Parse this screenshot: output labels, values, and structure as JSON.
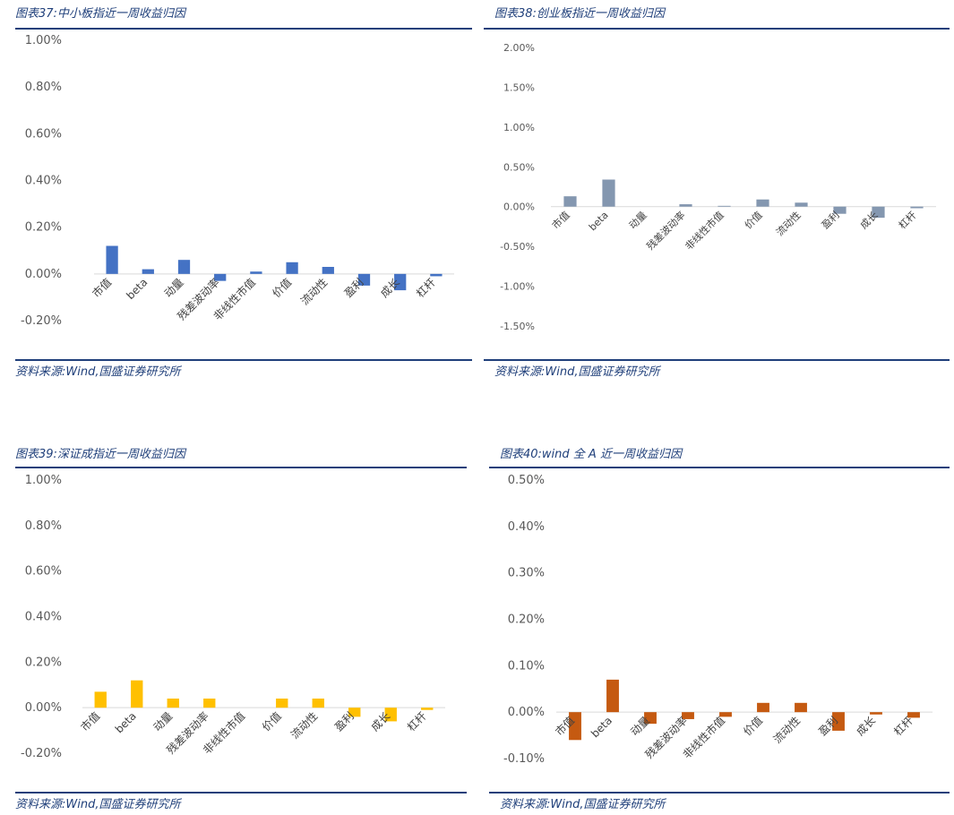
{
  "charts": [
    {
      "title": "图表37:中小板指近一周收益归因",
      "source": "资料来源:Wind,国盛证券研究所",
      "chart_data": {
        "type": "bar",
        "categories": [
          "市值",
          "beta",
          "动量",
          "残差波动率",
          "非线性市值",
          "价值",
          "流动性",
          "盈利",
          "成长",
          "杠杆"
        ],
        "values": [
          0.0012,
          0.0002,
          0.0006,
          -0.0003,
          0.0001,
          0.0005,
          0.0003,
          -0.0005,
          -0.0007,
          -0.0001
        ],
        "ylim": [
          -0.002,
          0.01
        ],
        "yticks": [
          1.0,
          0.8,
          0.6,
          0.4,
          0.2,
          0.0,
          -0.2
        ],
        "ytick_labels": [
          "1.00%",
          "0.80%",
          "0.60%",
          "0.40%",
          "0.20%",
          "0.00%",
          "-0.20%"
        ],
        "color": "#4472c4"
      }
    },
    {
      "title": "图表38:创业板指近一周收益归因",
      "source": "资料来源:Wind,国盛证券研究所",
      "chart_data": {
        "type": "bar",
        "categories": [
          "市值",
          "beta",
          "动量",
          "残差波动率",
          "非线性市值",
          "价值",
          "流动性",
          "盈利",
          "成长",
          "杠杆"
        ],
        "values": [
          0.0013,
          0.0034,
          0.0,
          0.0003,
          0.0001,
          0.0009,
          0.0005,
          -0.0009,
          -0.0014,
          -0.0002
        ],
        "ylim": [
          -0.015,
          0.02
        ],
        "yticks": [
          2.0,
          1.5,
          1.0,
          0.5,
          0.0,
          -0.5,
          -1.0,
          -1.5
        ],
        "ytick_labels": [
          "2.00%",
          "1.50%",
          "1.00%",
          "0.50%",
          "0.00%",
          "-0.50%",
          "-1.00%",
          "-1.50%"
        ],
        "color": "#8497b0"
      }
    },
    {
      "title": "图表39:深证成指近一周收益归因",
      "source": "资料来源:Wind,国盛证券研究所",
      "chart_data": {
        "type": "bar",
        "categories": [
          "市值",
          "beta",
          "动量",
          "残差波动率",
          "非线性市值",
          "价值",
          "流动性",
          "盈利",
          "成长",
          "杠杆"
        ],
        "values": [
          0.0007,
          0.0012,
          0.0004,
          0.0004,
          0.0,
          0.0004,
          0.0004,
          -0.0004,
          -0.0006,
          -0.0001
        ],
        "ylim": [
          -0.002,
          0.01
        ],
        "yticks": [
          1.0,
          0.8,
          0.6,
          0.4,
          0.2,
          0.0,
          -0.2
        ],
        "ytick_labels": [
          "1.00%",
          "0.80%",
          "0.60%",
          "0.40%",
          "0.20%",
          "0.00%",
          "-0.20%"
        ],
        "color": "#ffc000"
      }
    },
    {
      "title": "图表40:wind 全 A 近一周收益归因",
      "source": "资料来源:Wind,国盛证券研究所",
      "chart_data": {
        "type": "bar",
        "categories": [
          "市值",
          "beta",
          "动量",
          "残差波动率",
          "非线性市值",
          "价值",
          "流动性",
          "盈利",
          "成长",
          "杠杆"
        ],
        "values": [
          -0.0006,
          0.0007,
          -0.00025,
          -0.00015,
          -0.0001,
          0.0002,
          0.0002,
          -0.0004,
          -5e-05,
          -0.00012
        ],
        "ylim": [
          -0.001,
          0.005
        ],
        "yticks": [
          0.5,
          0.4,
          0.3,
          0.2,
          0.1,
          0.0,
          -0.1
        ],
        "ytick_labels": [
          "0.50%",
          "0.40%",
          "0.30%",
          "0.20%",
          "0.10%",
          "0.00%",
          "-0.10%"
        ],
        "color": "#c55a11"
      }
    }
  ]
}
